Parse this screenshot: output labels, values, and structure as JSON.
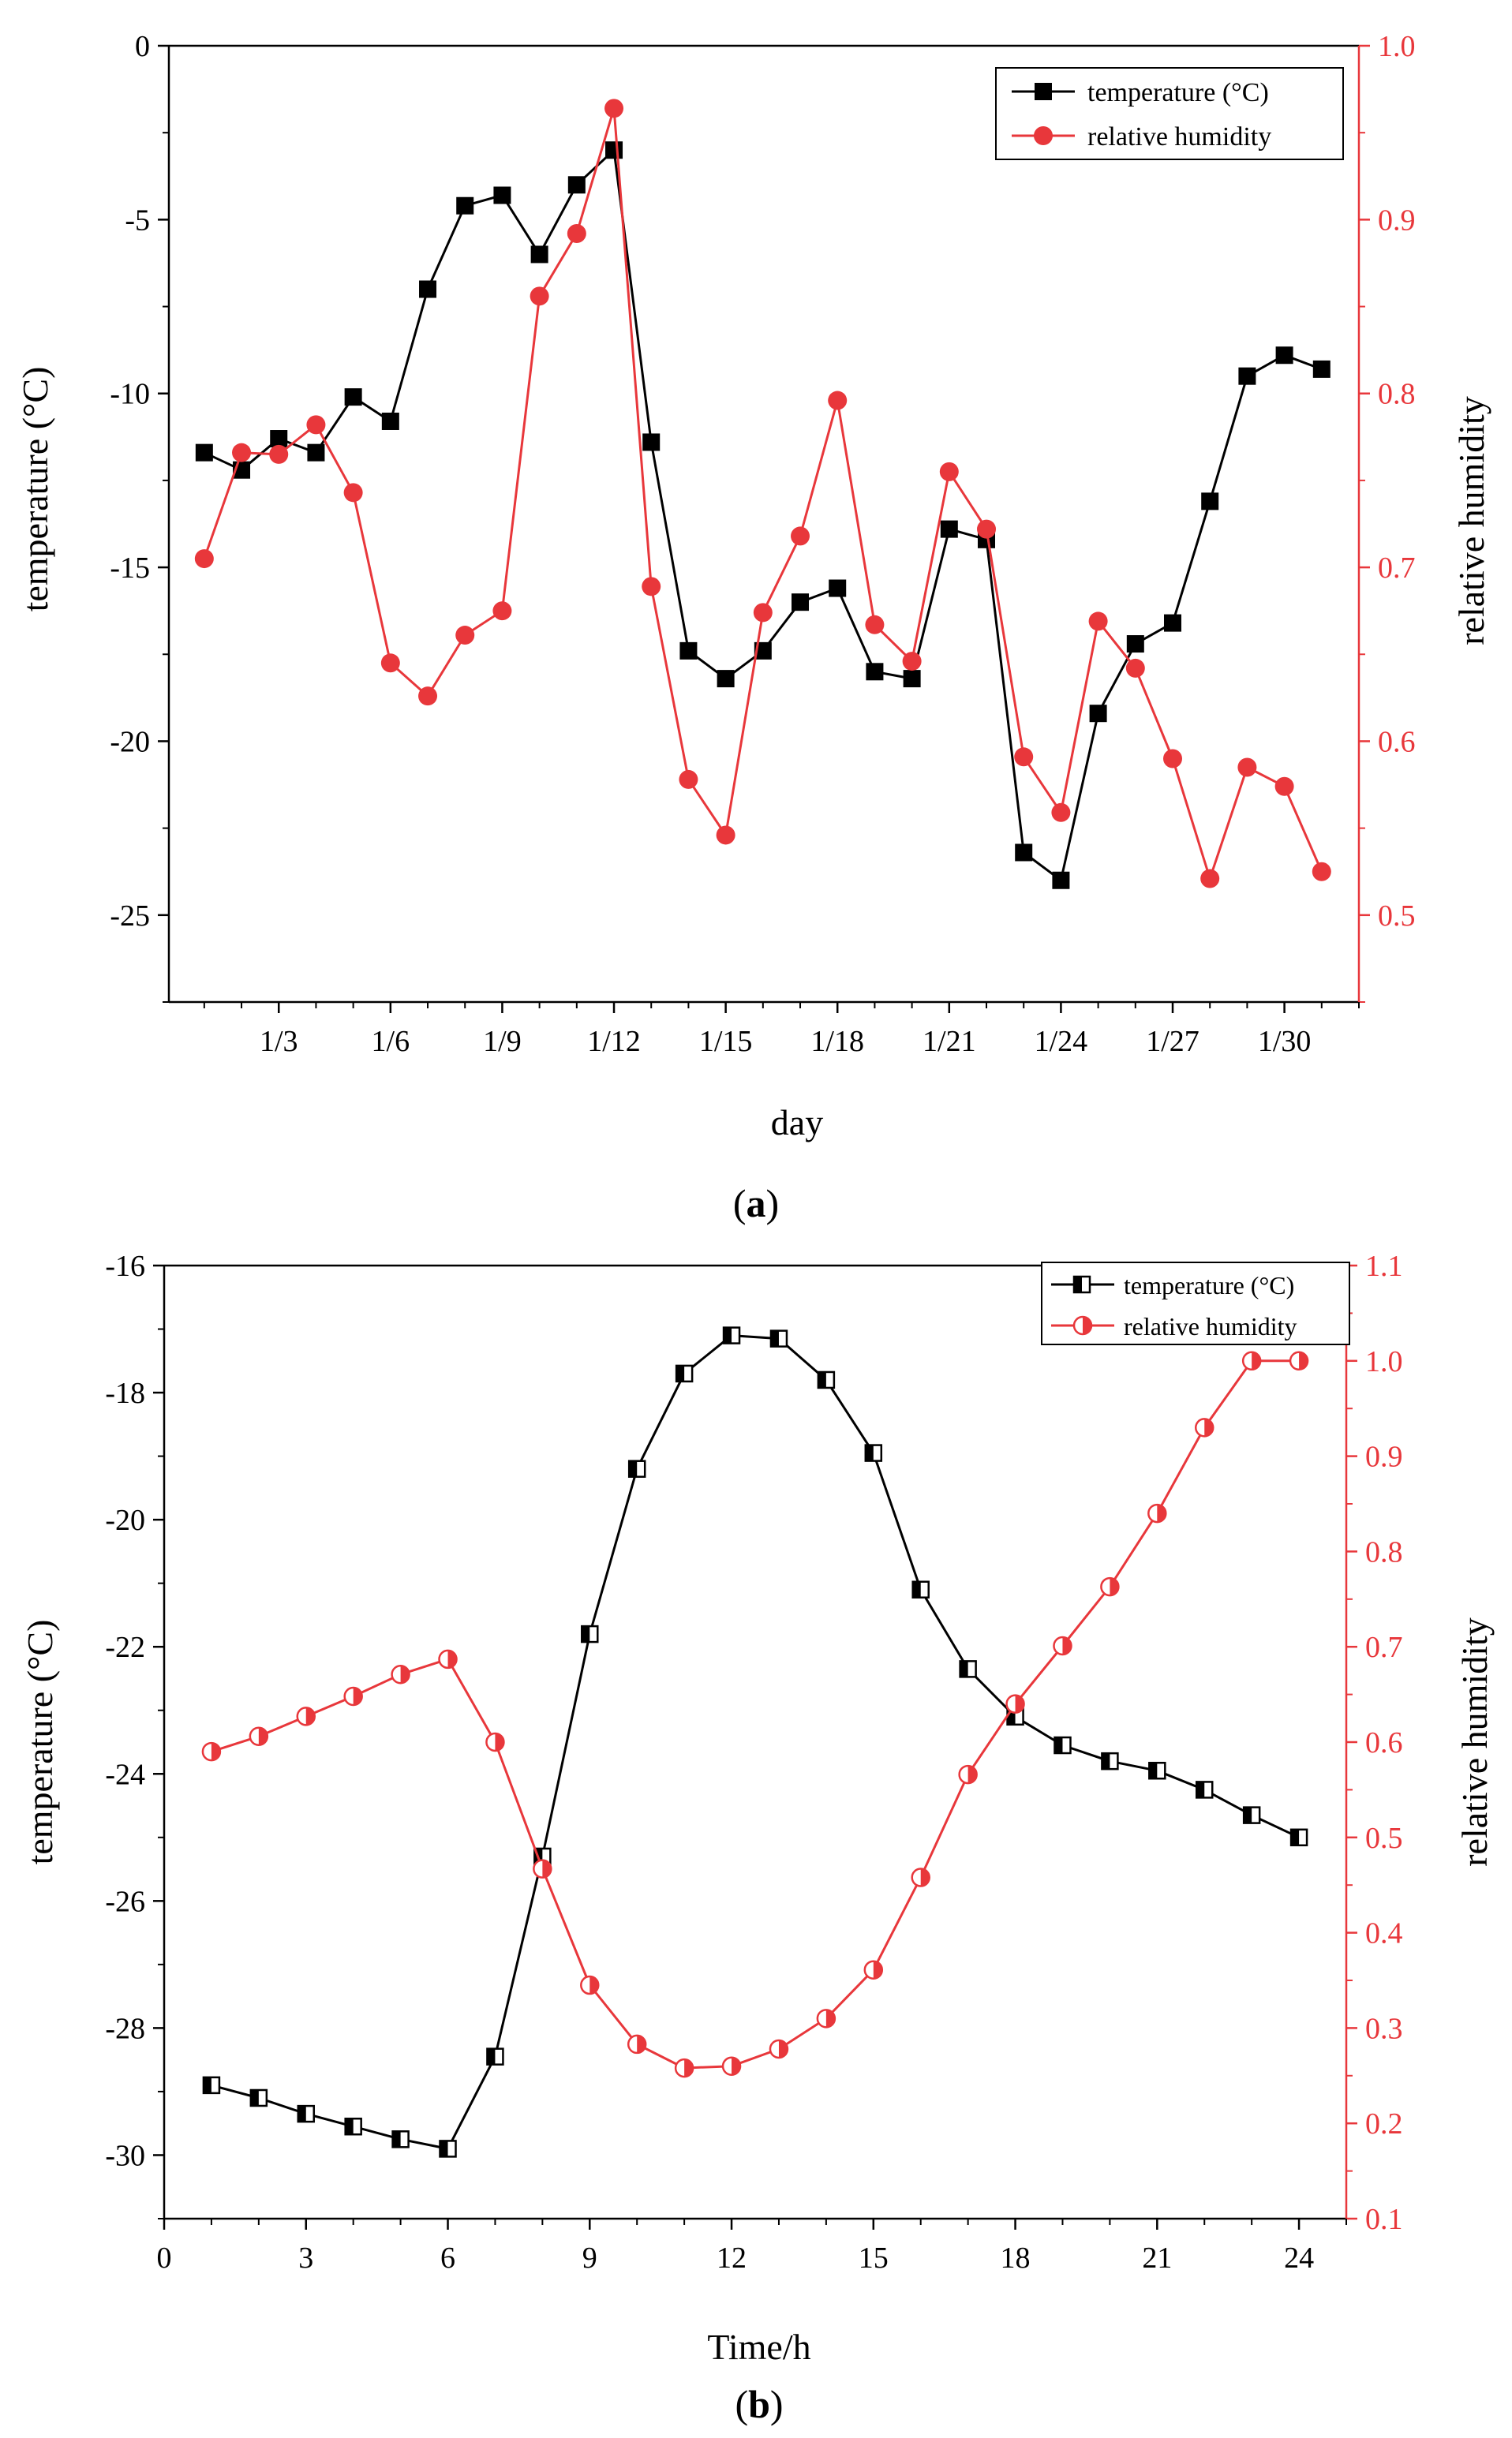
{
  "panels": [
    {
      "label_open": "(",
      "label_letter": "a",
      "label_close": ")",
      "legend": {
        "temperature": "temperature (°C)",
        "humidity": "relative humidity"
      }
    },
    {
      "label_open": "(",
      "label_letter": "b",
      "label_close": ")",
      "legend": {
        "temperature": "temperature (°C)",
        "humidity": "relative humidity"
      }
    }
  ],
  "chart_data": [
    {
      "type": "line",
      "title": "",
      "xlabel": "day",
      "ylabel": "temperature (°C)",
      "y2label": "relative humidity",
      "x": [
        1,
        2,
        3,
        4,
        5,
        6,
        7,
        8,
        9,
        10,
        11,
        12,
        13,
        14,
        15,
        16,
        17,
        18,
        19,
        20,
        21,
        22,
        23,
        24,
        25,
        26,
        27,
        28,
        29,
        30,
        31
      ],
      "xlim": [
        0.05,
        32
      ],
      "x_ticks": [
        3,
        6,
        9,
        12,
        15,
        18,
        21,
        24,
        27,
        30
      ],
      "x_tick_labels": [
        "1/3",
        "1/6",
        "1/9",
        "1/12",
        "1/15",
        "1/18",
        "1/21",
        "1/24",
        "1/27",
        "1/30"
      ],
      "ylim": [
        -27.5,
        0
      ],
      "y_ticks": [
        0,
        -5,
        -10,
        -15,
        -20,
        -25
      ],
      "y_tick_labels": [
        "0",
        "-5",
        "-10",
        "-15",
        "-20",
        "-25"
      ],
      "y2lim": [
        0.45,
        1.0
      ],
      "y2_ticks": [
        0.5,
        0.6,
        0.7,
        0.8,
        0.9,
        1.0
      ],
      "y2_tick_labels": [
        "0.5",
        "0.6",
        "0.7",
        "0.8",
        "0.9",
        "1.0"
      ],
      "legend_position": "top-right",
      "series": [
        {
          "name": "temperature (°C)",
          "axis": "left",
          "color": "#000000",
          "marker": "filled-square",
          "values": [
            -11.7,
            -12.2,
            -11.3,
            -11.7,
            -10.1,
            -10.8,
            -7.0,
            -4.6,
            -4.3,
            -6.0,
            -4.0,
            -3.0,
            -11.4,
            -17.4,
            -18.2,
            -17.4,
            -16.0,
            -15.6,
            -18.0,
            -18.2,
            -13.9,
            -14.2,
            -23.2,
            -24.0,
            -19.2,
            -17.2,
            -16.6,
            -13.1,
            -9.5,
            -8.9,
            -9.3
          ]
        },
        {
          "name": "relative humidity",
          "axis": "right",
          "color": "#E8373B",
          "marker": "filled-circle",
          "values": [
            0.705,
            0.766,
            0.765,
            0.782,
            0.743,
            0.645,
            0.626,
            0.661,
            0.675,
            0.856,
            0.892,
            0.964,
            0.689,
            0.578,
            0.546,
            0.674,
            0.718,
            0.796,
            0.667,
            0.646,
            0.755,
            0.722,
            0.591,
            0.559,
            0.669,
            0.642,
            0.59,
            0.521,
            0.585,
            0.574,
            0.525
          ]
        }
      ]
    },
    {
      "type": "line",
      "title": "",
      "xlabel": "Time/h",
      "ylabel": "temperature (°C)",
      "y2label": "relative humidity",
      "x": [
        1,
        2,
        3,
        4,
        5,
        6,
        7,
        8,
        9,
        10,
        11,
        12,
        13,
        14,
        15,
        16,
        17,
        18,
        19,
        20,
        21,
        22,
        23,
        24
      ],
      "xlim": [
        0,
        25
      ],
      "x_ticks": [
        0,
        3,
        6,
        9,
        12,
        15,
        18,
        21,
        24
      ],
      "x_tick_labels": [
        "0",
        "3",
        "6",
        "9",
        "12",
        "15",
        "18",
        "21",
        "24"
      ],
      "ylim": [
        -31,
        -16
      ],
      "y_ticks": [
        -16,
        -18,
        -20,
        -22,
        -24,
        -26,
        -28,
        -30
      ],
      "y_tick_labels": [
        "-16",
        "-18",
        "-20",
        "-22",
        "-24",
        "-26",
        "-28",
        "-30"
      ],
      "y2lim": [
        0.1,
        1.1
      ],
      "y2_ticks": [
        0.1,
        0.2,
        0.3,
        0.4,
        0.5,
        0.6,
        0.7,
        0.8,
        0.9,
        1.0,
        1.1
      ],
      "y2_tick_labels": [
        "0.1",
        "0.2",
        "0.3",
        "0.4",
        "0.5",
        "0.6",
        "0.7",
        "0.8",
        "0.9",
        "1.0",
        "1.1"
      ],
      "legend_position": "top-right",
      "series": [
        {
          "name": "temperature (°C)",
          "axis": "left",
          "color": "#000000",
          "marker": "half-filled-square",
          "values": [
            -28.9,
            -29.1,
            -29.35,
            -29.55,
            -29.75,
            -29.9,
            -28.45,
            -25.3,
            -21.8,
            -19.2,
            -17.7,
            -17.1,
            -17.15,
            -17.8,
            -18.95,
            -21.1,
            -22.35,
            -23.1,
            -23.55,
            -23.8,
            -23.95,
            -24.25,
            -24.65,
            -25.0
          ]
        },
        {
          "name": "relative humidity",
          "axis": "right",
          "color": "#E8373B",
          "marker": "half-filled-circle",
          "values": [
            0.59,
            0.606,
            0.627,
            0.648,
            0.671,
            0.687,
            0.6,
            0.467,
            0.345,
            0.283,
            0.258,
            0.26,
            0.278,
            0.31,
            0.361,
            0.458,
            0.566,
            0.64,
            0.701,
            0.763,
            0.84,
            0.93,
            1.0,
            1.0
          ]
        }
      ]
    }
  ]
}
